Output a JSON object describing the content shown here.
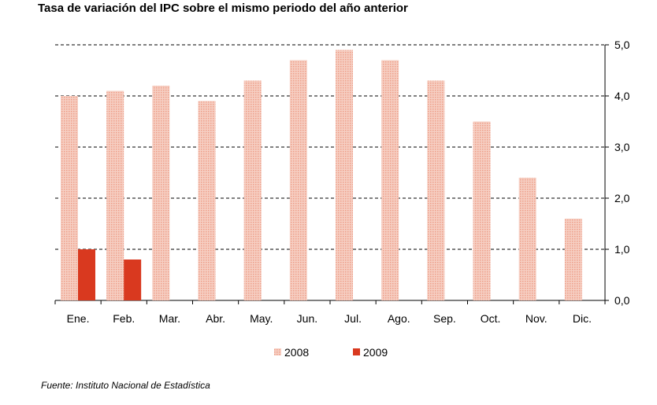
{
  "chart_data": {
    "type": "bar",
    "title": "Tasa de variación del IPC sobre el mismo periodo del año anterior",
    "categories": [
      "Ene.",
      "Feb.",
      "Mar.",
      "Abr.",
      "May.",
      "Jun.",
      "Jul.",
      "Ago.",
      "Sep.",
      "Oct.",
      "Nov.",
      "Dic."
    ],
    "series": [
      {
        "name": "2008",
        "color": "#f3b8a8",
        "values": [
          4.0,
          4.1,
          4.2,
          3.9,
          4.3,
          4.7,
          4.9,
          4.7,
          4.3,
          3.5,
          2.4,
          1.6
        ]
      },
      {
        "name": "2009",
        "color": "#d9391f",
        "values": [
          1.0,
          0.8,
          null,
          null,
          null,
          null,
          null,
          null,
          null,
          null,
          null,
          null
        ]
      }
    ],
    "y_ticks": [
      "0,0",
      "1,0",
      "2,0",
      "3,0",
      "4,0",
      "5,0"
    ],
    "ylim": [
      0,
      5
    ],
    "y_axis_side": "right",
    "grid": "dashed horizontal",
    "legend_position": "bottom-center"
  },
  "source": "Fuente: Instituto Nacional de Estadística"
}
